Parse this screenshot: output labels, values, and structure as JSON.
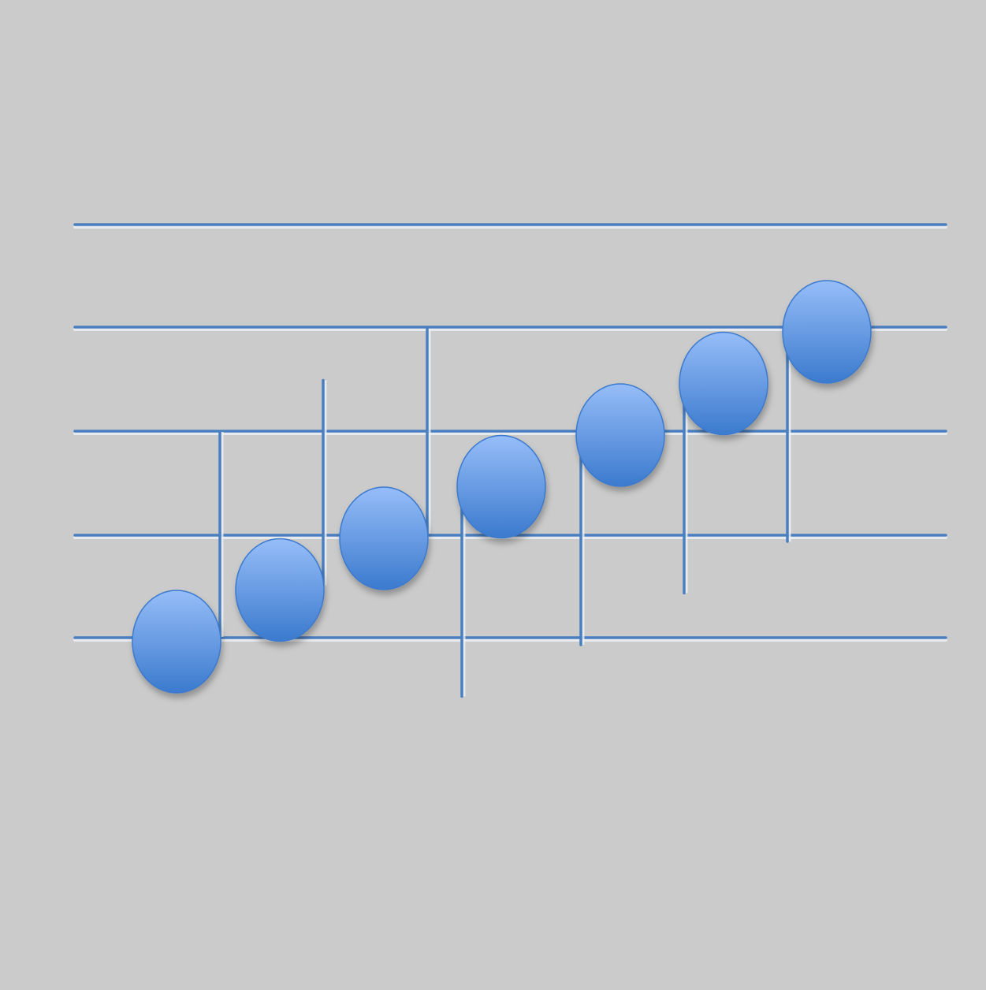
{
  "colors": {
    "background": "#cbcbcb",
    "line": "#4a7fbf",
    "line_highlight": "#eef2f7",
    "note_top": "#96bdf8",
    "note_bottom": "#3b7ace"
  },
  "staff": {
    "line_count": 5
  },
  "notes": [
    {
      "position": 0,
      "stem": "up"
    },
    {
      "position": 1,
      "stem": "up"
    },
    {
      "position": 2,
      "stem": "up"
    },
    {
      "position": 3,
      "stem": "down"
    },
    {
      "position": 4,
      "stem": "down"
    },
    {
      "position": 5,
      "stem": "down"
    },
    {
      "position": 6,
      "stem": "down"
    }
  ]
}
